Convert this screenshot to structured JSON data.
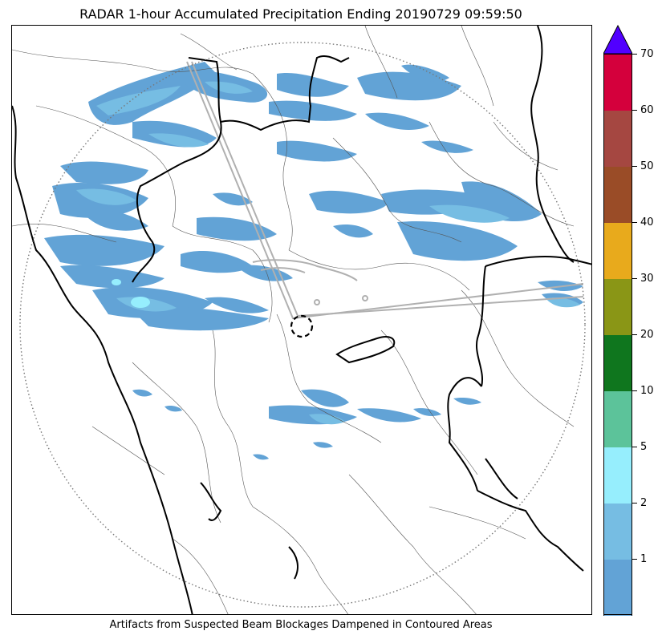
{
  "title": "RADAR 1-hour Accumulated Precipitation Ending 20190729 09:59:50",
  "footer": "Artifacts from Suspected Beam Blockages Dampened in Contoured Areas",
  "colorbar": {
    "bins": [
      {
        "label": "1",
        "color": "#62a3d6"
      },
      {
        "label": "2",
        "color": "#76bde3"
      },
      {
        "label": "5",
        "color": "#96eefd"
      },
      {
        "label": "10",
        "color": "#5cc39a"
      },
      {
        "label": "20",
        "color": "#0f761e"
      },
      {
        "label": "30",
        "color": "#8a9616"
      },
      {
        "label": "40",
        "color": "#e8aa1c"
      },
      {
        "label": "50",
        "color": "#9a4c27"
      },
      {
        "label": "60",
        "color": "#a54741"
      },
      {
        "label": "70",
        "color": "#d4003c"
      }
    ],
    "overflow_color": "#5100ff",
    "tick_labels": [
      "1",
      "2",
      "5",
      "10",
      "20",
      "30",
      "40",
      "50",
      "60",
      "70"
    ]
  },
  "map": {
    "radar_range_ring": "dotted-circle",
    "center_marker": "dashed-circle",
    "boundary_colors": {
      "state": "#000000",
      "district": "#555555",
      "blockage": "#b0b0b0"
    }
  }
}
